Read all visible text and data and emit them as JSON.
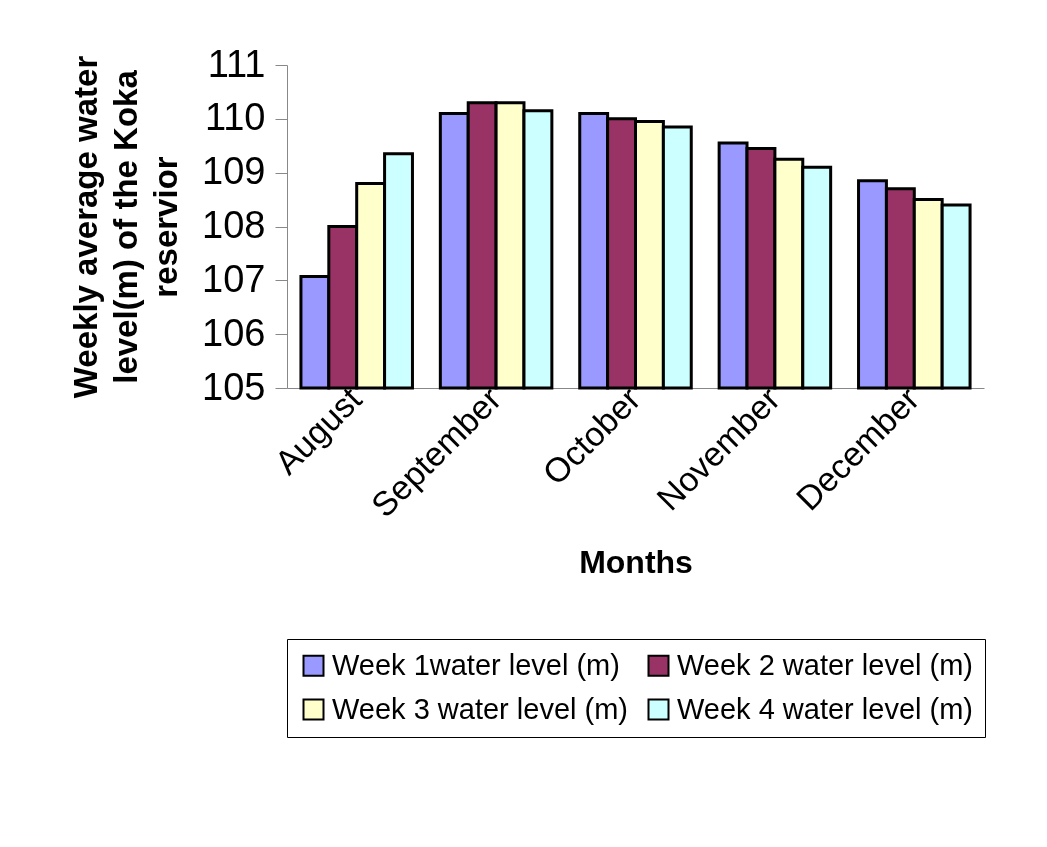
{
  "chart_data": {
    "type": "bar",
    "xlabel": "Months",
    "ylabel": "Weekly average water level(m) of the Koka reservior",
    "categories": [
      "August",
      "September",
      "October",
      "November",
      "December"
    ],
    "series": [
      {
        "name": "Week 1water level (m)",
        "color": "#9999ff",
        "values": [
          107.07,
          110.1,
          110.1,
          109.55,
          108.85
        ]
      },
      {
        "name": "Week 2 water level (m)",
        "color": "#993366",
        "values": [
          108.0,
          110.3,
          110.0,
          109.45,
          108.7
        ]
      },
      {
        "name": "Week 3 water level (m)",
        "color": "#ffffcc",
        "values": [
          108.8,
          110.3,
          109.95,
          109.25,
          108.5
        ]
      },
      {
        "name": "Week 4 water level (m)",
        "color": "#ccffff",
        "values": [
          109.35,
          110.15,
          109.85,
          109.1,
          108.4
        ]
      }
    ],
    "ylim": [
      105,
      111
    ],
    "yticks": [
      105,
      106,
      107,
      108,
      109,
      110,
      111
    ],
    "grid": false,
    "legend": "bottom"
  }
}
